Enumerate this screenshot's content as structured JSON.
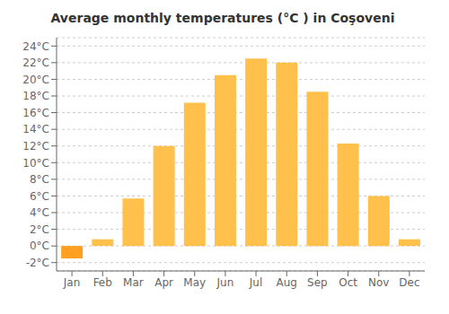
{
  "chart_data": {
    "type": "bar",
    "title": "Average monthly temperatures (°C ) in Coşoveni",
    "categories": [
      "Jan",
      "Feb",
      "Mar",
      "Apr",
      "May",
      "Jun",
      "Jul",
      "Aug",
      "Sep",
      "Oct",
      "Nov",
      "Dec"
    ],
    "values": [
      -1.5,
      0.8,
      5.7,
      12.0,
      17.2,
      20.5,
      22.5,
      22.0,
      18.5,
      12.3,
      6.0,
      0.8
    ],
    "colors": [
      "#FFA020",
      "#FFC04C",
      "#FFC04C",
      "#FFC04C",
      "#FFC04C",
      "#FFC04C",
      "#FFC04C",
      "#FFC04C",
      "#FFC04C",
      "#FFC04C",
      "#FFC04C",
      "#FFC04C"
    ],
    "ylim": [
      -3,
      25
    ],
    "yticks": [
      {
        "value": -2,
        "label": "-2°C"
      },
      {
        "value": 0,
        "label": "0°C"
      },
      {
        "value": 2,
        "label": "2°C"
      },
      {
        "value": 4,
        "label": "4°C"
      },
      {
        "value": 6,
        "label": "6°C"
      },
      {
        "value": 8,
        "label": "8°C"
      },
      {
        "value": 10,
        "label": "10°C"
      },
      {
        "value": 12,
        "label": "12°C"
      },
      {
        "value": 14,
        "label": "14°C"
      },
      {
        "value": 16,
        "label": "16°C"
      },
      {
        "value": 18,
        "label": "18°C"
      },
      {
        "value": 20,
        "label": "20°C"
      },
      {
        "value": 22,
        "label": "22°C"
      },
      {
        "value": 24,
        "label": "24°C"
      }
    ],
    "grid": true
  }
}
